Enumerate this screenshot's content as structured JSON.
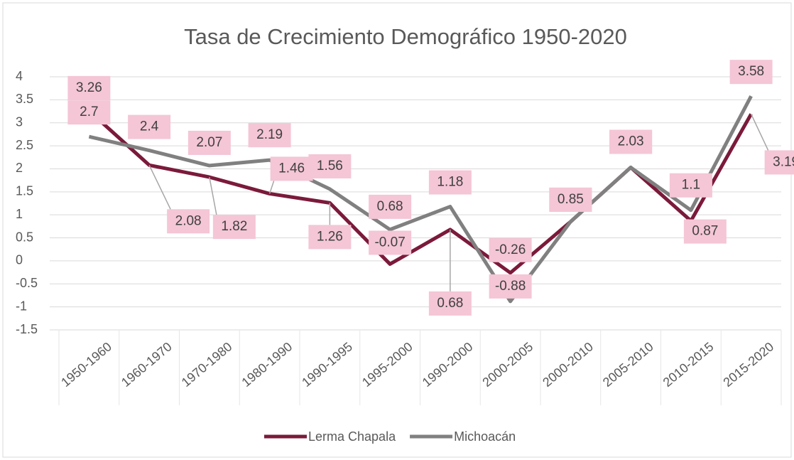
{
  "chart_data": {
    "type": "line",
    "title": "Tasa de Crecimiento Demográfico 1950-2020",
    "categories": [
      "1950-1960",
      "1960-1970",
      "1970-1980",
      "1980-1990",
      "1990-1995",
      "1995-2000",
      "1990-2000",
      "2000-2005",
      "2000-2010",
      "2005-2010",
      "2010-2015",
      "2015-2020"
    ],
    "series": [
      {
        "name": "Lerma Chapala",
        "color": "#7b1a3a",
        "values": [
          3.26,
          2.08,
          1.82,
          1.46,
          1.26,
          -0.07,
          0.68,
          -0.26,
          0.85,
          2.03,
          0.87,
          3.19
        ]
      },
      {
        "name": "Michoacán",
        "color": "#808080",
        "values": [
          2.7,
          2.4,
          2.07,
          2.19,
          1.56,
          0.68,
          1.18,
          -0.88,
          0.85,
          2.03,
          1.1,
          3.58
        ]
      }
    ],
    "ylim": [
      -1.5,
      4
    ],
    "yticks": [
      -1.5,
      -1,
      -0.5,
      0,
      0.5,
      1,
      1.5,
      2,
      2.5,
      3,
      3.5,
      4
    ],
    "grid": true,
    "legend": "bottom"
  }
}
